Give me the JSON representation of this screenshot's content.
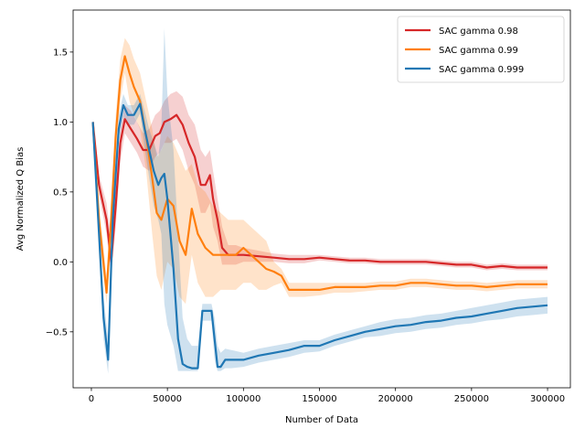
{
  "chart_data": {
    "type": "line",
    "xlabel": "Number of Data",
    "ylabel": "Avg Normalized Q Bias",
    "xlim": [
      -12000,
      315000
    ],
    "ylim": [
      -0.9,
      1.8
    ],
    "xticks": [
      0,
      50000,
      100000,
      150000,
      200000,
      250000,
      300000
    ],
    "xtick_labels": [
      "0",
      "50000",
      "100000",
      "150000",
      "200000",
      "250000",
      "300000"
    ],
    "yticks": [
      -0.5,
      0.0,
      0.5,
      1.0,
      1.5
    ],
    "ytick_labels": [
      "−0.5",
      "0.0",
      "0.5",
      "1.0",
      "1.5"
    ],
    "legend_position": "top-right",
    "grid": false,
    "series": [
      {
        "name": "SAC gamma 0.98",
        "color": "#d62728",
        "x": [
          1000,
          5000,
          10000,
          13000,
          16000,
          19000,
          22000,
          26000,
          30000,
          34000,
          38000,
          42000,
          45000,
          48000,
          52000,
          56000,
          60000,
          64000,
          68000,
          72000,
          75000,
          78000,
          80000,
          83000,
          86000,
          90000,
          95000,
          100000,
          110000,
          120000,
          130000,
          140000,
          150000,
          160000,
          170000,
          180000,
          190000,
          200000,
          210000,
          220000,
          230000,
          240000,
          250000,
          260000,
          270000,
          280000,
          290000,
          300000
        ],
        "y": [
          1.0,
          0.55,
          0.3,
          0.0,
          0.4,
          0.85,
          1.02,
          0.95,
          0.88,
          0.8,
          0.8,
          0.9,
          0.92,
          1.0,
          1.02,
          1.05,
          0.98,
          0.85,
          0.75,
          0.55,
          0.55,
          0.62,
          0.45,
          0.3,
          0.1,
          0.05,
          0.05,
          0.05,
          0.04,
          0.03,
          0.02,
          0.02,
          0.03,
          0.02,
          0.01,
          0.01,
          0.0,
          0.0,
          0.0,
          0.0,
          -0.01,
          -0.02,
          -0.02,
          -0.04,
          -0.03,
          -0.04,
          -0.04,
          -0.04
        ],
        "upper": [
          1.0,
          0.62,
          0.42,
          0.15,
          0.55,
          0.95,
          1.12,
          1.08,
          1.0,
          0.92,
          0.95,
          1.05,
          1.08,
          1.15,
          1.2,
          1.22,
          1.18,
          1.05,
          0.98,
          0.8,
          0.75,
          0.8,
          0.65,
          0.45,
          0.25,
          0.12,
          0.12,
          0.1,
          0.08,
          0.06,
          0.05,
          0.05,
          0.05,
          0.04,
          0.03,
          0.03,
          0.02,
          0.02,
          0.02,
          0.02,
          0.01,
          0.0,
          0.0,
          -0.02,
          -0.01,
          -0.02,
          -0.02,
          -0.02
        ],
        "lower": [
          1.0,
          0.48,
          0.2,
          -0.1,
          0.25,
          0.72,
          0.92,
          0.85,
          0.78,
          0.68,
          0.65,
          0.75,
          0.78,
          0.85,
          0.85,
          0.88,
          0.8,
          0.65,
          0.55,
          0.35,
          0.35,
          0.42,
          0.25,
          0.15,
          -0.02,
          -0.02,
          -0.02,
          0.0,
          0.0,
          0.0,
          -0.01,
          -0.01,
          0.01,
          0.0,
          -0.01,
          -0.01,
          -0.02,
          -0.02,
          -0.02,
          -0.02,
          -0.03,
          -0.04,
          -0.04,
          -0.06,
          -0.05,
          -0.06,
          -0.06,
          -0.06
        ]
      },
      {
        "name": "SAC gamma 0.99",
        "color": "#ff7f0e",
        "x": [
          1000,
          5000,
          10000,
          13000,
          16000,
          19000,
          22000,
          25000,
          28000,
          32000,
          36000,
          40000,
          43000,
          46000,
          50000,
          54000,
          58000,
          62000,
          66000,
          70000,
          75000,
          80000,
          85000,
          90000,
          95000,
          100000,
          105000,
          110000,
          115000,
          120000,
          125000,
          130000,
          140000,
          150000,
          160000,
          170000,
          180000,
          190000,
          200000,
          210000,
          220000,
          230000,
          240000,
          250000,
          260000,
          270000,
          280000,
          290000,
          300000
        ],
        "y": [
          1.0,
          0.3,
          -0.22,
          0.3,
          0.9,
          1.3,
          1.47,
          1.35,
          1.25,
          1.15,
          0.9,
          0.6,
          0.35,
          0.3,
          0.45,
          0.4,
          0.15,
          0.05,
          0.38,
          0.2,
          0.1,
          0.05,
          0.05,
          0.05,
          0.05,
          0.1,
          0.05,
          0.0,
          -0.05,
          -0.07,
          -0.1,
          -0.2,
          -0.2,
          -0.2,
          -0.18,
          -0.18,
          -0.18,
          -0.17,
          -0.17,
          -0.15,
          -0.15,
          -0.16,
          -0.17,
          -0.17,
          -0.18,
          -0.17,
          -0.16,
          -0.16,
          -0.16
        ],
        "upper": [
          1.0,
          0.4,
          -0.1,
          0.45,
          1.05,
          1.45,
          1.6,
          1.55,
          1.45,
          1.35,
          1.15,
          0.95,
          0.75,
          0.8,
          0.9,
          0.85,
          0.75,
          0.65,
          0.7,
          0.55,
          0.5,
          0.4,
          0.35,
          0.3,
          0.3,
          0.3,
          0.25,
          0.2,
          0.15,
          0.0,
          -0.05,
          -0.15,
          -0.15,
          -0.15,
          -0.15,
          -0.15,
          -0.15,
          -0.14,
          -0.14,
          -0.12,
          -0.12,
          -0.13,
          -0.14,
          -0.14,
          -0.15,
          -0.14,
          -0.13,
          -0.13,
          -0.13
        ],
        "lower": [
          1.0,
          0.2,
          -0.3,
          0.15,
          0.75,
          1.15,
          1.35,
          1.15,
          1.05,
          0.95,
          0.65,
          0.2,
          -0.1,
          -0.2,
          0.0,
          -0.05,
          -0.25,
          -0.3,
          0.05,
          -0.15,
          -0.25,
          -0.25,
          -0.2,
          -0.2,
          -0.2,
          -0.15,
          -0.15,
          -0.2,
          -0.2,
          -0.17,
          -0.15,
          -0.25,
          -0.25,
          -0.24,
          -0.22,
          -0.22,
          -0.21,
          -0.2,
          -0.2,
          -0.18,
          -0.18,
          -0.19,
          -0.2,
          -0.2,
          -0.21,
          -0.2,
          -0.19,
          -0.19,
          -0.19
        ]
      },
      {
        "name": "SAC gamma 0.999",
        "color": "#1f77b4",
        "x": [
          1000,
          5000,
          8000,
          11000,
          14000,
          18000,
          21000,
          24000,
          28000,
          32000,
          35000,
          38000,
          41000,
          44000,
          46000,
          48000,
          50000,
          54000,
          57000,
          60000,
          63000,
          66000,
          70000,
          73000,
          76000,
          79000,
          81000,
          83000,
          85000,
          88000,
          92000,
          100000,
          110000,
          120000,
          130000,
          140000,
          150000,
          160000,
          170000,
          180000,
          190000,
          200000,
          210000,
          220000,
          230000,
          240000,
          250000,
          260000,
          270000,
          280000,
          290000,
          300000
        ],
        "y": [
          1.0,
          0.2,
          -0.4,
          -0.7,
          0.3,
          0.95,
          1.12,
          1.05,
          1.05,
          1.13,
          0.95,
          0.8,
          0.65,
          0.55,
          0.6,
          0.63,
          0.45,
          -0.05,
          -0.55,
          -0.73,
          -0.75,
          -0.76,
          -0.76,
          -0.35,
          -0.35,
          -0.35,
          -0.55,
          -0.75,
          -0.75,
          -0.7,
          -0.7,
          -0.7,
          -0.67,
          -0.65,
          -0.63,
          -0.6,
          -0.6,
          -0.56,
          -0.53,
          -0.5,
          -0.48,
          -0.46,
          -0.45,
          -0.43,
          -0.42,
          -0.4,
          -0.39,
          -0.37,
          -0.35,
          -0.33,
          -0.32,
          -0.31
        ],
        "upper": [
          1.0,
          0.3,
          -0.25,
          -0.55,
          0.45,
          1.05,
          1.2,
          1.12,
          1.12,
          1.2,
          1.08,
          0.95,
          0.85,
          0.75,
          0.95,
          1.67,
          1.2,
          0.8,
          0.2,
          -0.4,
          -0.55,
          -0.6,
          -0.6,
          -0.3,
          -0.3,
          -0.3,
          -0.4,
          -0.6,
          -0.65,
          -0.62,
          -0.63,
          -0.65,
          -0.62,
          -0.6,
          -0.58,
          -0.56,
          -0.56,
          -0.52,
          -0.49,
          -0.46,
          -0.43,
          -0.41,
          -0.4,
          -0.38,
          -0.37,
          -0.35,
          -0.33,
          -0.31,
          -0.29,
          -0.27,
          -0.26,
          -0.25
        ],
        "lower": [
          1.0,
          0.1,
          -0.55,
          -0.8,
          0.15,
          0.85,
          1.04,
          0.98,
          0.98,
          1.06,
          0.82,
          0.6,
          0.4,
          0.3,
          0.2,
          -0.3,
          -0.45,
          -0.6,
          -0.78,
          -0.78,
          -0.78,
          -0.78,
          -0.78,
          -0.42,
          -0.42,
          -0.42,
          -0.7,
          -0.78,
          -0.78,
          -0.76,
          -0.76,
          -0.75,
          -0.72,
          -0.7,
          -0.68,
          -0.65,
          -0.64,
          -0.6,
          -0.57,
          -0.54,
          -0.53,
          -0.51,
          -0.5,
          -0.48,
          -0.47,
          -0.45,
          -0.44,
          -0.42,
          -0.41,
          -0.39,
          -0.38,
          -0.37
        ]
      }
    ]
  }
}
